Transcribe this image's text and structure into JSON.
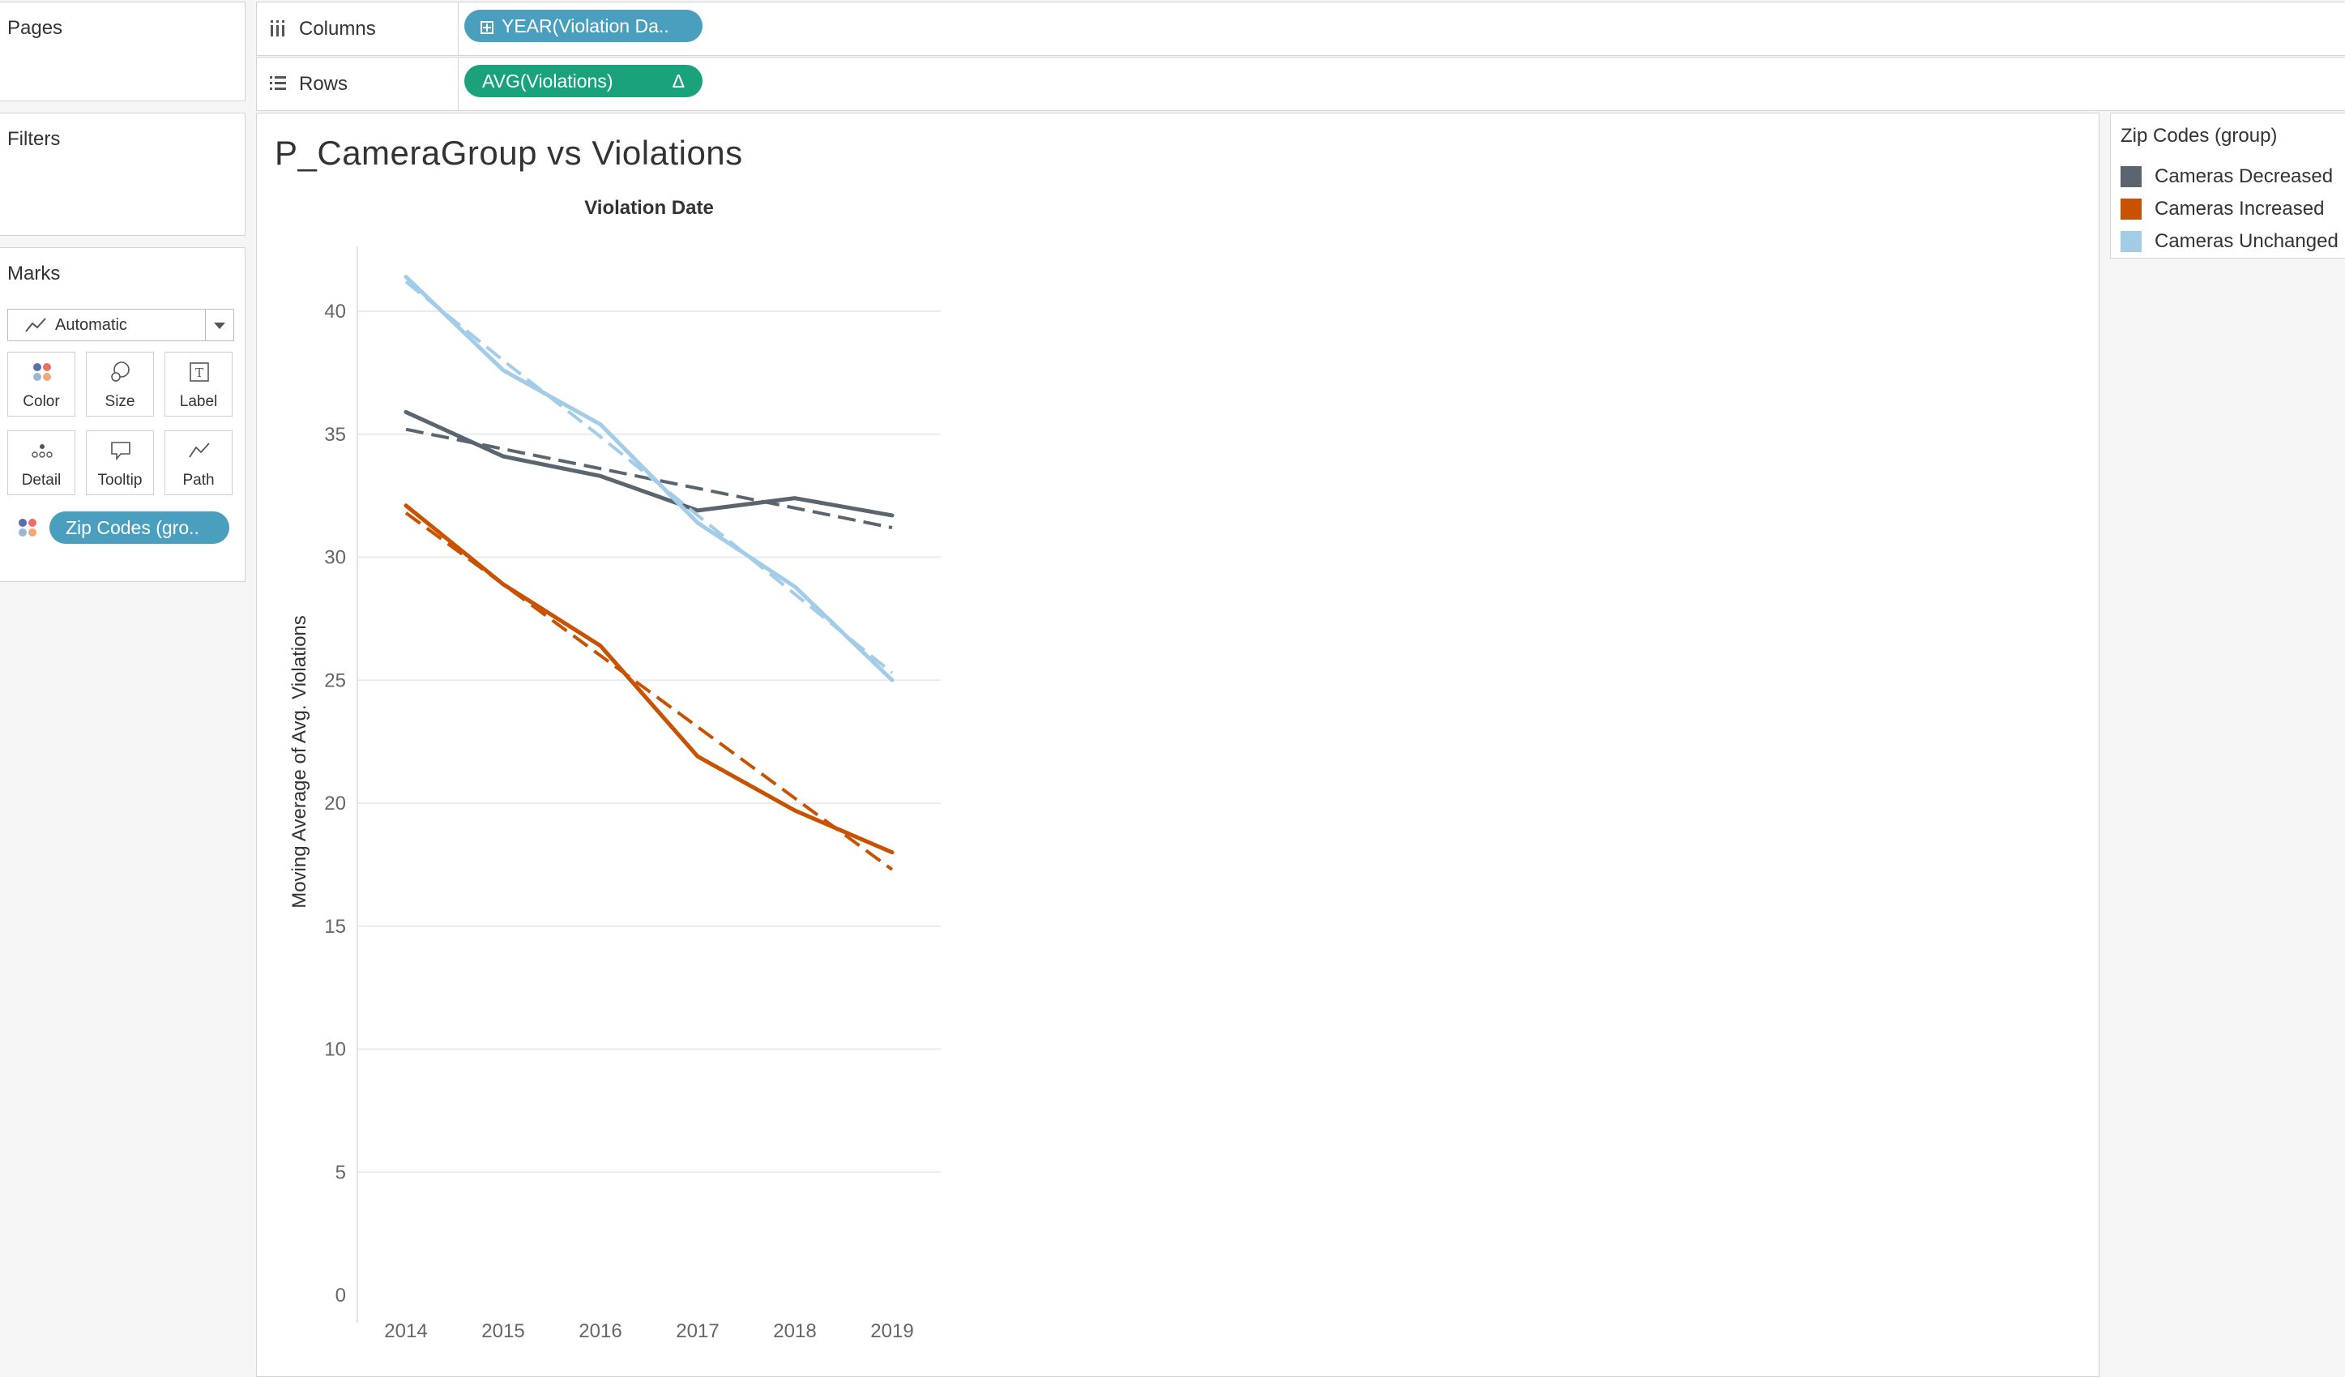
{
  "left_panel": {
    "pages": {
      "title": "Pages"
    },
    "filters": {
      "title": "Filters"
    },
    "marks": {
      "title": "Marks",
      "mark_type": "Automatic",
      "buttons": [
        {
          "label": "Color",
          "icon": "color-dots-icon"
        },
        {
          "label": "Size",
          "icon": "size-circles-icon"
        },
        {
          "label": "Label",
          "icon": "label-text-icon"
        },
        {
          "label": "Detail",
          "icon": "detail-dots-icon"
        },
        {
          "label": "Tooltip",
          "icon": "tooltip-bubble-icon"
        },
        {
          "label": "Path",
          "icon": "path-line-icon"
        }
      ],
      "color_pill": "Zip Codes (gro.."
    }
  },
  "shelves": {
    "columns": {
      "label": "Columns",
      "pill": "YEAR(Violation Da.."
    },
    "rows": {
      "label": "Rows",
      "pill": "AVG(Violations)",
      "pill_badge": "Δ"
    }
  },
  "legend": {
    "title": "Zip Codes (group)",
    "items": [
      {
        "label": "Cameras Decreased",
        "color": "#5b6570"
      },
      {
        "label": "Cameras Increased",
        "color": "#c85200"
      },
      {
        "label": "Cameras Unchanged",
        "color": "#a3cce9"
      }
    ]
  },
  "chart_data": {
    "type": "line",
    "title": "P_CameraGroup vs Violations",
    "xlabel": "Violation Date",
    "ylabel": "Moving Average of Avg. Violations",
    "x": [
      "2014",
      "2015",
      "2016",
      "2017",
      "2018",
      "2019"
    ],
    "yticks": [
      0,
      5,
      10,
      15,
      20,
      25,
      30,
      35,
      40
    ],
    "ylim": [
      0,
      42
    ],
    "grid": "horizontal",
    "series": [
      {
        "name": "Cameras Decreased",
        "color": "#5b6570",
        "values": [
          35.9,
          34.1,
          33.3,
          31.9,
          32.4,
          31.7
        ],
        "trend": [
          35.2,
          34.4,
          33.6,
          32.8,
          32.0,
          31.2
        ]
      },
      {
        "name": "Cameras Increased",
        "color": "#c85200",
        "values": [
          32.1,
          28.9,
          26.4,
          21.9,
          19.7,
          18.0
        ],
        "trend": [
          31.8,
          28.9,
          26.0,
          23.1,
          20.2,
          17.3
        ]
      },
      {
        "name": "Cameras Unchanged",
        "color": "#a3cce9",
        "values": [
          41.4,
          37.6,
          35.4,
          31.4,
          28.8,
          25.0
        ],
        "trend": [
          41.2,
          38.0,
          34.9,
          31.7,
          28.5,
          25.3
        ]
      }
    ]
  }
}
